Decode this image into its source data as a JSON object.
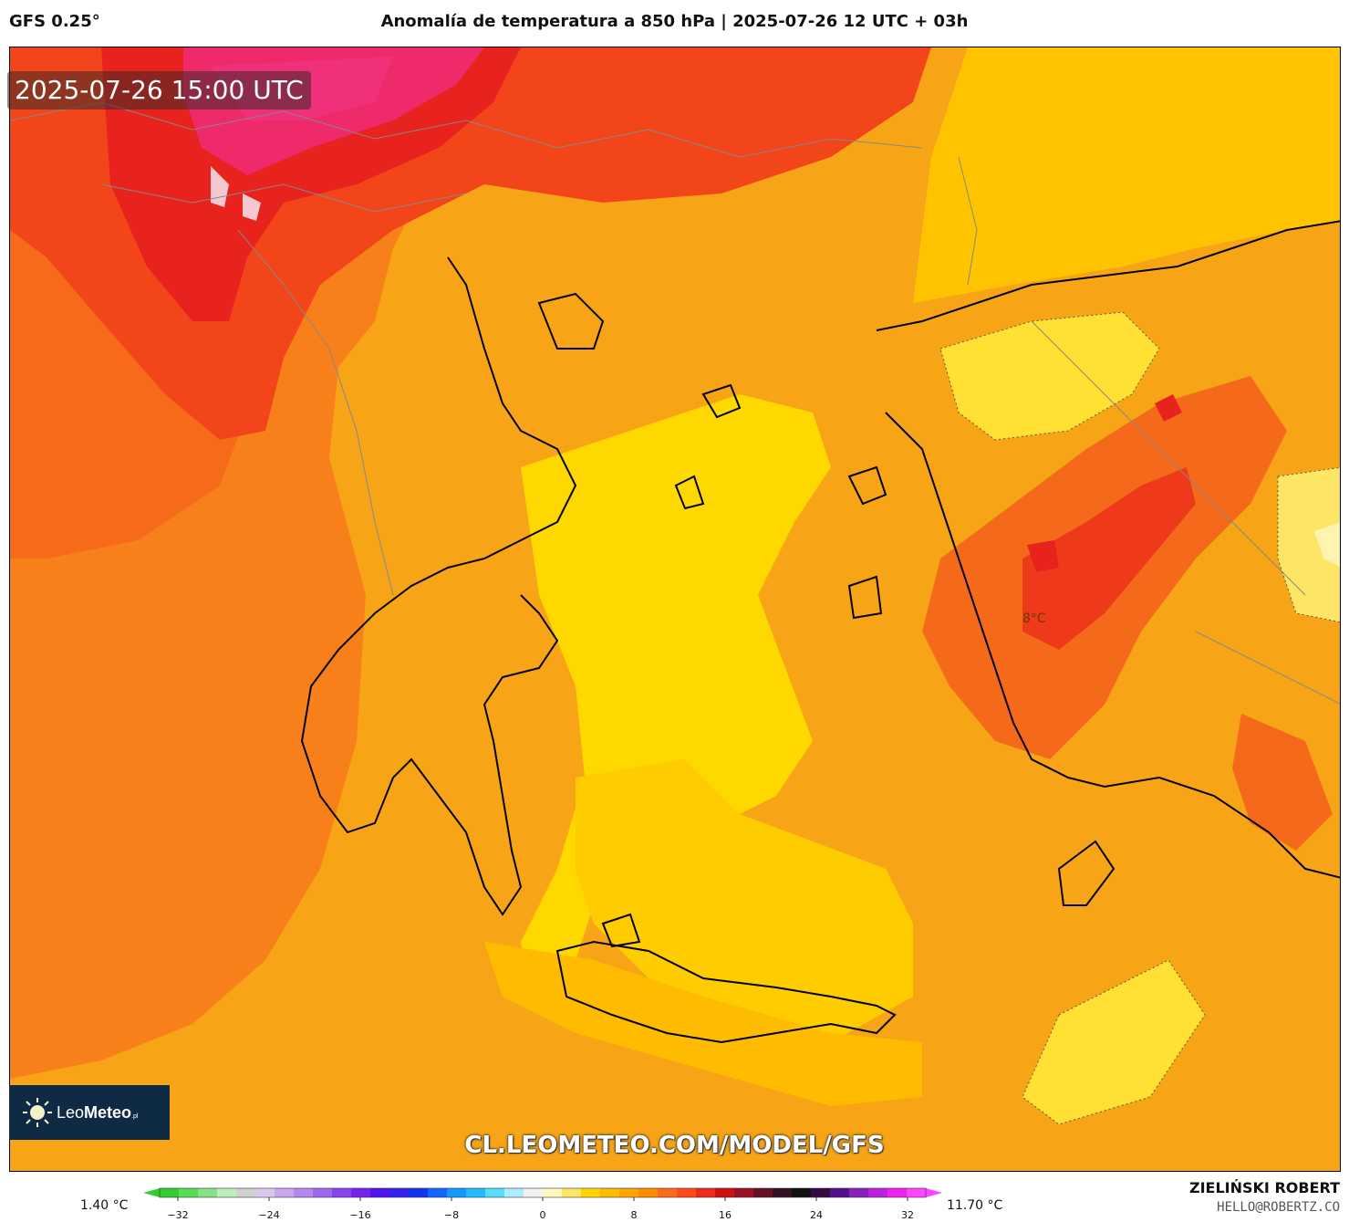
{
  "header": {
    "model": "GFS 0.25°",
    "title": "Anomalía de temperatura a 850 hPa | 2025-07-26 12 UTC + 03h"
  },
  "map": {
    "timestamp": "2025-07-26 15:00 UTC",
    "contour_label": "8°C",
    "region": "Greece / Aegean / Western Turkey"
  },
  "branding": {
    "logo_text_regular": "Leo",
    "logo_text_bold": "Meteo",
    "logo_suffix": ".pl",
    "url": "CL.LEOMETEO.COM/MODEL/GFS",
    "author": "ZIELIŃSKI ROBERT",
    "email": "HELLO@ROBERTZ.CO"
  },
  "colorbar": {
    "min_label": "1.40 °C",
    "max_label": "11.70 °C",
    "ticks": [
      "−32",
      "−24",
      "−16",
      "−8",
      "0",
      "8",
      "16",
      "24",
      "32"
    ],
    "colors": [
      "#33cc33",
      "#55dd55",
      "#88e088",
      "#bbeebb",
      "#d0d0d0",
      "#d9c8ee",
      "#c9a8ee",
      "#b488ee",
      "#9f66ee",
      "#8844ee",
      "#7722ee",
      "#5511ee",
      "#3322ee",
      "#1133ee",
      "#1166ff",
      "#1199ff",
      "#22bbff",
      "#55ddff",
      "#aaeeff",
      "#f2f2f2",
      "#fff7bb",
      "#ffe566",
      "#ffd400",
      "#ffbb00",
      "#ffa500",
      "#ff8c00",
      "#ff6a1a",
      "#ff4a1a",
      "#ee2a1a",
      "#cc1111",
      "#991122",
      "#661122",
      "#331122",
      "#111111",
      "#330a44",
      "#55118a",
      "#8822bb",
      "#bb22dd",
      "#ee22ee",
      "#ff44ff"
    ]
  }
}
